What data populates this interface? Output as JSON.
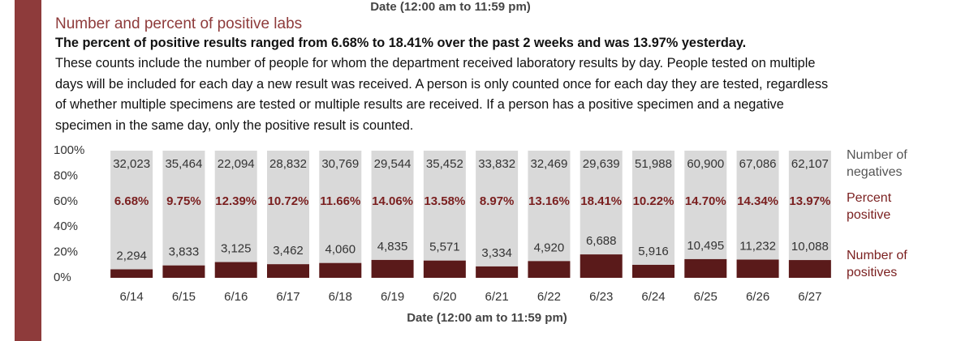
{
  "document": {
    "header_fragment": "Date (12:00 am to 11:59 pm)",
    "title": "Number and percent of positive labs",
    "summary": "The percent of positive results ranged from 6.68% to 18.41% over the past 2 weeks and was 13.97% yesterday.",
    "paragraph": "These counts include the number of people for whom the department received laboratory results by day. People tested on multiple days will be included for each day a new result was received. A person is only counted once for each day they are tested, regardless of whether multiple specimens are tested or multiple results are received. If a person has a positive specimen and a negative specimen in the same day, only the positive result is counted."
  },
  "chart_data": {
    "type": "bar",
    "stacked_percent": true,
    "x_label": "Date (12:00 am to 11:59 pm)",
    "categories": [
      "6/14",
      "6/15",
      "6/16",
      "6/17",
      "6/18",
      "6/19",
      "6/20",
      "6/21",
      "6/22",
      "6/23",
      "6/24",
      "6/25",
      "6/26",
      "6/27"
    ],
    "ylim": [
      0,
      100
    ],
    "yticks": [
      {
        "value": 0,
        "label": "0%"
      },
      {
        "value": 20,
        "label": "20%"
      },
      {
        "value": 40,
        "label": "40%"
      },
      {
        "value": 60,
        "label": "60%"
      },
      {
        "value": 80,
        "label": "80%"
      },
      {
        "value": 100,
        "label": "100%"
      }
    ],
    "series": [
      {
        "name": "Number of negatives",
        "color": "#d9d9d9",
        "values": [
          32023,
          35464,
          22094,
          28832,
          30769,
          29544,
          35452,
          33832,
          32469,
          29639,
          51988,
          60900,
          67086,
          62107
        ],
        "value_labels": [
          "32,023",
          "35,464",
          "22,094",
          "28,832",
          "30,769",
          "29,544",
          "35,452",
          "33,832",
          "32,469",
          "29,639",
          "51,988",
          "60,900",
          "67,086",
          "62,107"
        ]
      },
      {
        "name": "Percent positive",
        "color": "#5a1a1a",
        "values": [
          6.68,
          9.75,
          12.39,
          10.72,
          11.66,
          14.06,
          13.58,
          8.97,
          13.16,
          18.41,
          10.22,
          14.7,
          14.34,
          13.97
        ],
        "value_labels": [
          "6.68%",
          "9.75%",
          "12.39%",
          "10.72%",
          "11.66%",
          "14.06%",
          "13.58%",
          "8.97%",
          "13.16%",
          "18.41%",
          "10.22%",
          "14.70%",
          "14.34%",
          "13.97%"
        ]
      },
      {
        "name": "Number of positives",
        "color": "#5a1a1a",
        "values": [
          2294,
          3833,
          3125,
          3462,
          4060,
          4835,
          5571,
          3334,
          4920,
          6688,
          5916,
          10495,
          11232,
          10088
        ],
        "value_labels": [
          "2,294",
          "3,833",
          "3,125",
          "3,462",
          "4,060",
          "4,835",
          "5,571",
          "3,334",
          "4,920",
          "6,688",
          "5,916",
          "10,495",
          "11,232",
          "10,088"
        ]
      }
    ]
  }
}
